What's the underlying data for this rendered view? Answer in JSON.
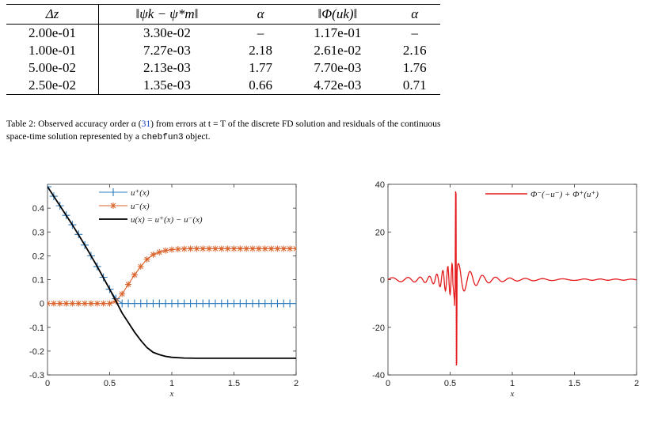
{
  "table": {
    "headers": [
      "Δz",
      "‖ψk − ψ*m‖",
      "α",
      "‖Φ(uk)‖",
      "α"
    ],
    "rows": [
      [
        "2.00e-01",
        "3.30e-02",
        "–",
        "1.17e-01",
        "–"
      ],
      [
        "1.00e-01",
        "7.27e-03",
        "2.18",
        "2.61e-02",
        "2.16"
      ],
      [
        "5.00e-02",
        "2.13e-03",
        "1.77",
        "7.70e-03",
        "1.76"
      ],
      [
        "2.50e-02",
        "1.35e-03",
        "0.66",
        "4.72e-03",
        "0.71"
      ]
    ]
  },
  "caption": {
    "label": "Table 2: ",
    "text1": "Observed accuracy order α (",
    "ref": "31",
    "text2": ") from errors at t = T of the discrete FD solution and residuals of the continuous space-time solution represented by a ",
    "code": "chebfun3",
    "text3": " object."
  },
  "chart_data": [
    {
      "type": "line",
      "xlabel": "x",
      "ylabel": "",
      "xlim": [
        0,
        2
      ],
      "ylim": [
        -0.3,
        0.5
      ],
      "xticks": [
        "0",
        "0.5",
        "1",
        "1.5",
        "2"
      ],
      "yticks": [
        "-0.3",
        "-0.2",
        "-0.1",
        "0",
        "0.1",
        "0.2",
        "0.3",
        "0.4"
      ],
      "legend_position": "top-right",
      "series": [
        {
          "name": "u⁺(x)",
          "color": "#2b7bbd",
          "marker": "plus",
          "x": [
            0,
            0.05,
            0.1,
            0.15,
            0.2,
            0.25,
            0.3,
            0.35,
            0.4,
            0.45,
            0.5,
            0.55,
            0.6,
            0.65,
            0.7,
            0.75,
            0.8,
            0.85,
            0.9,
            0.95,
            1.0,
            1.05,
            1.1,
            1.15,
            1.2,
            1.25,
            1.3,
            1.35,
            1.4,
            1.45,
            1.5,
            1.55,
            1.6,
            1.65,
            1.7,
            1.75,
            1.8,
            1.85,
            1.9,
            1.95,
            2.0
          ],
          "y": [
            0.49,
            0.45,
            0.41,
            0.37,
            0.33,
            0.29,
            0.245,
            0.2,
            0.155,
            0.11,
            0.06,
            0.02,
            0,
            0,
            0,
            0,
            0,
            0,
            0,
            0,
            0,
            0,
            0,
            0,
            0,
            0,
            0,
            0,
            0,
            0,
            0,
            0,
            0,
            0,
            0,
            0,
            0,
            0,
            0,
            0,
            0
          ]
        },
        {
          "name": "u⁻(x)",
          "color": "#d9632b",
          "marker": "asterisk",
          "x": [
            0,
            0.05,
            0.1,
            0.15,
            0.2,
            0.25,
            0.3,
            0.35,
            0.4,
            0.45,
            0.5,
            0.55,
            0.6,
            0.65,
            0.7,
            0.75,
            0.8,
            0.85,
            0.9,
            0.95,
            1.0,
            1.05,
            1.1,
            1.15,
            1.2,
            1.25,
            1.3,
            1.35,
            1.4,
            1.45,
            1.5,
            1.55,
            1.6,
            1.65,
            1.7,
            1.75,
            1.8,
            1.85,
            1.9,
            1.95,
            2.0
          ],
          "y": [
            0,
            0,
            0,
            0,
            0,
            0,
            0,
            0,
            0,
            0,
            0,
            0.01,
            0.04,
            0.08,
            0.12,
            0.155,
            0.185,
            0.205,
            0.215,
            0.222,
            0.226,
            0.228,
            0.229,
            0.23,
            0.23,
            0.23,
            0.23,
            0.23,
            0.23,
            0.23,
            0.23,
            0.23,
            0.23,
            0.23,
            0.23,
            0.23,
            0.23,
            0.23,
            0.23,
            0.23,
            0.23
          ]
        },
        {
          "name": "u(x) = u⁺(x) − u⁻(x)",
          "color": "#000000",
          "marker": "none",
          "x": [
            0,
            0.1,
            0.2,
            0.3,
            0.4,
            0.5,
            0.55,
            0.6,
            0.65,
            0.7,
            0.75,
            0.8,
            0.85,
            0.9,
            0.95,
            1.0,
            1.1,
            1.2,
            1.4,
            1.6,
            1.8,
            2.0
          ],
          "y": [
            0.49,
            0.41,
            0.33,
            0.245,
            0.155,
            0.06,
            0.01,
            -0.04,
            -0.08,
            -0.12,
            -0.155,
            -0.185,
            -0.205,
            -0.215,
            -0.222,
            -0.226,
            -0.229,
            -0.23,
            -0.23,
            -0.23,
            -0.23,
            -0.23
          ]
        }
      ]
    },
    {
      "type": "line",
      "xlabel": "x",
      "ylabel": "",
      "xlim": [
        0,
        2
      ],
      "ylim": [
        -40,
        40
      ],
      "xticks": [
        "0",
        "0.5",
        "1",
        "1.5",
        "2"
      ],
      "yticks": [
        "-40",
        "-20",
        "0",
        "20",
        "40"
      ],
      "legend_position": "top-right",
      "series": [
        {
          "name": "Φ⁻(−u⁻) + Φ⁺(u⁺)",
          "color": "#e41a1c",
          "marker": "none",
          "note_shape": "oscillation around 0 with amplitude growing to ~±5 near x=0.5, spike to +37 at x≈0.55 and −36 at x≈0.545, decaying ripples after"
        }
      ]
    }
  ]
}
